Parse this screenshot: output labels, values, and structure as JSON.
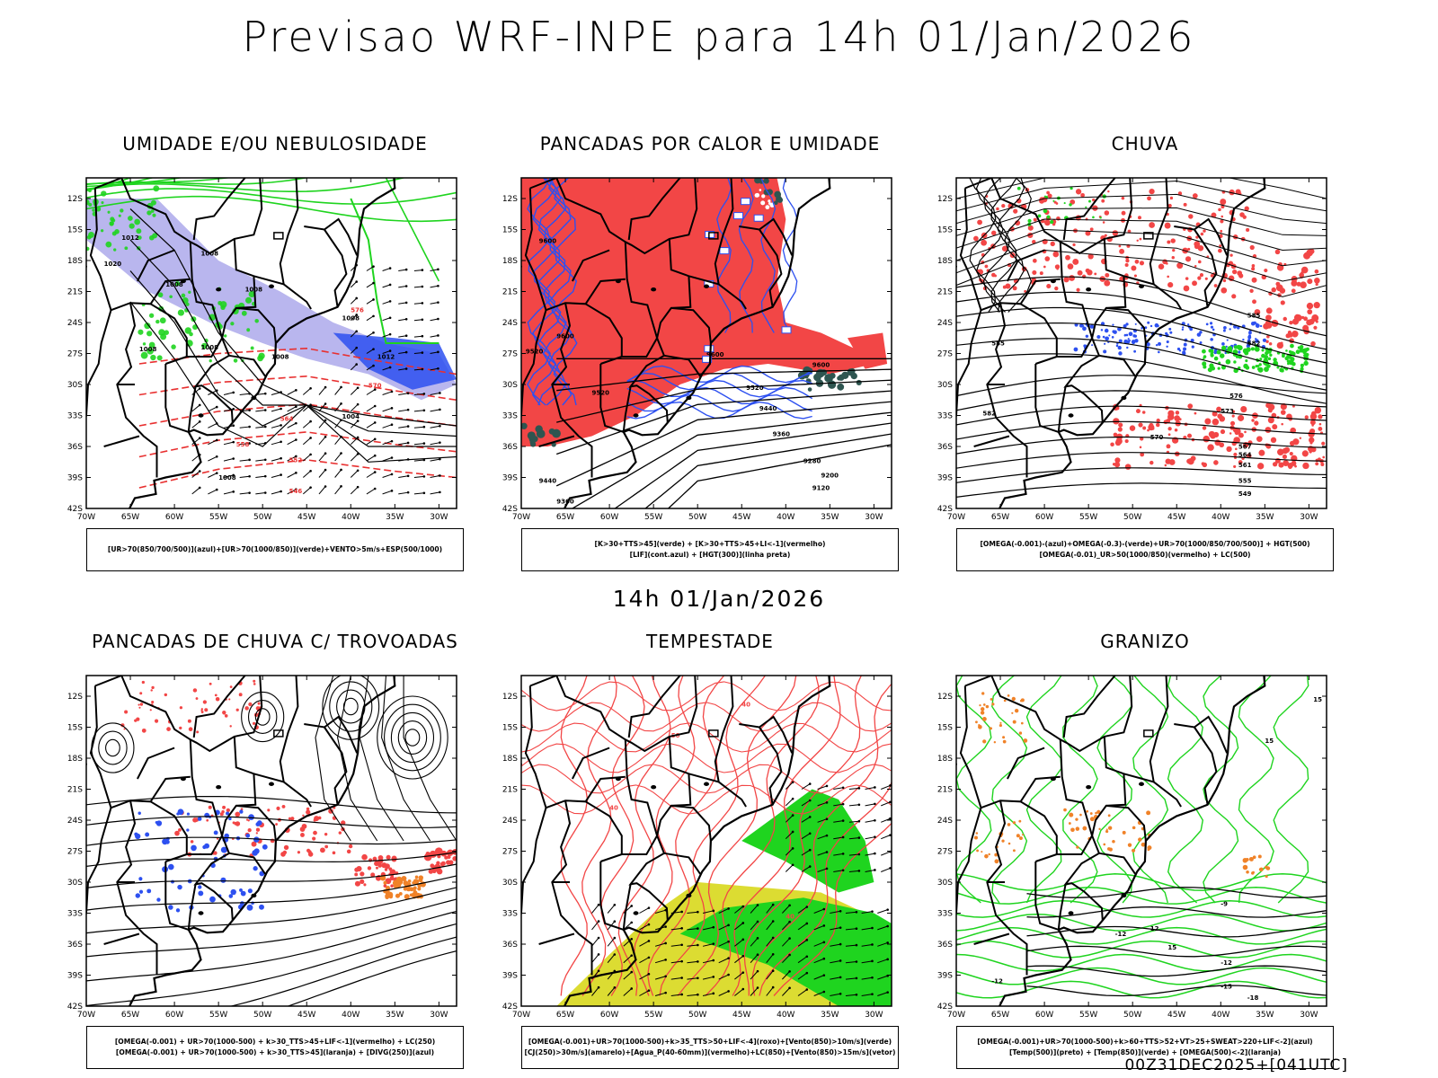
{
  "header": {
    "title": "Previsao WRF-INPE  para 14h 01/Jan/2026",
    "mid_time": "14h 01/Jan/2026",
    "run_stamp": "00Z31DEC2025+[041UTC]"
  },
  "axes": {
    "lat_labels": [
      "12S",
      "15S",
      "18S",
      "21S",
      "24S",
      "27S",
      "30S",
      "33S",
      "36S",
      "39S",
      "42S"
    ],
    "lon_labels": [
      "70W",
      "65W",
      "60W",
      "55W",
      "50W",
      "45W",
      "40W",
      "35W",
      "30W"
    ]
  },
  "panels": [
    {
      "id": "umidade",
      "title": "UMIDADE E/OU NEBULOSIDADE",
      "legend": [
        "[UR>70(850/700/500)](azul)+[UR>70(1000/850)](verde)+VENTO>5m/s+ESP(500/1000)"
      ],
      "contour_labels": [
        "1012",
        "1008",
        "1008",
        "1008",
        "1012",
        "1008",
        "1008",
        "1008",
        "1008",
        "1004",
        "1008",
        "1020",
        "576",
        "570",
        "564",
        "558",
        "552",
        "546"
      ]
    },
    {
      "id": "pancadas-calor",
      "title": "PANCADAS POR CALOR E UMIDADE",
      "legend": [
        "[K>30+TTS>45](verde) + [K>30+TTS>45+LI<-1](vermelho)",
        "[LIF](cont.azul) + [HGT(300)](linha preta)"
      ],
      "contour_labels": [
        "9600",
        "9520",
        "9600",
        "9600",
        "9520",
        "9440",
        "9360",
        "9280",
        "9200",
        "9120",
        "9440",
        "9360"
      ]
    },
    {
      "id": "chuva",
      "title": "CHUVA",
      "legend": [
        "[OMEGA(-0.001)-(azul)+OMEGA(-0.3)-(verde)+UR>70(1000/850/700/500)] + HGT(500)",
        "[OMEGA(-0.01)_UR>50(1000/850)(vermelho) + LC(500)"
      ],
      "contour_labels": [
        "585",
        "582",
        "579",
        "576",
        "573",
        "570",
        "567",
        "564",
        "561",
        "558",
        "555",
        "549"
      ]
    },
    {
      "id": "trovoadas",
      "title": "PANCADAS DE CHUVA C/ TROVOADAS",
      "legend": [
        "[OMEGA(-0.001) + UR>70(1000-500) + k>30_TTS>45+LIF<-1](vermelho) + LC(250)",
        "[OMEGA(-0.001) + UR>70(1000-500) + k>30_TTS>45](laranja) + [DIVG(250)](azul)"
      ],
      "contour_labels": []
    },
    {
      "id": "tempestade",
      "title": "TEMPESTADE",
      "legend": [
        "[OMEGA(-0.001)+UR>70(1000-500)+k>35_TTS>50+LIF<-4](roxo)+[Vento(850)>10m/s](verde)",
        "[CJ(250)>30m/s](amarelo)+[Agua_P(40-60mm)](vermelho)+LC(850)+[Vento(850)>15m/s](vetor)"
      ],
      "contour_labels": [
        "40",
        "40",
        "50",
        "40"
      ]
    },
    {
      "id": "granizo",
      "title": "GRANIZO",
      "legend": [
        "[OMEGA(-0.001)+UR>70(1000-500)+k>60+TTS>52+VT>25+SWEAT>220+LIF<-2](azul)",
        "[Temp(500)](preto) + [Temp(850)](verde) + [OMEGA(500)<-2](laranja)"
      ],
      "contour_labels": [
        "15",
        "15",
        "-9",
        "-12",
        "12",
        "-12",
        "-15",
        "-12",
        "15",
        "-18"
      ]
    }
  ],
  "colors": {
    "red": "#f24646",
    "blue": "#2d50f0",
    "lightblue": "#b9b6ee",
    "green": "#1fd41f",
    "yellow": "#dcdc32",
    "orange": "#f08228",
    "darkteal": "#2e5550"
  }
}
